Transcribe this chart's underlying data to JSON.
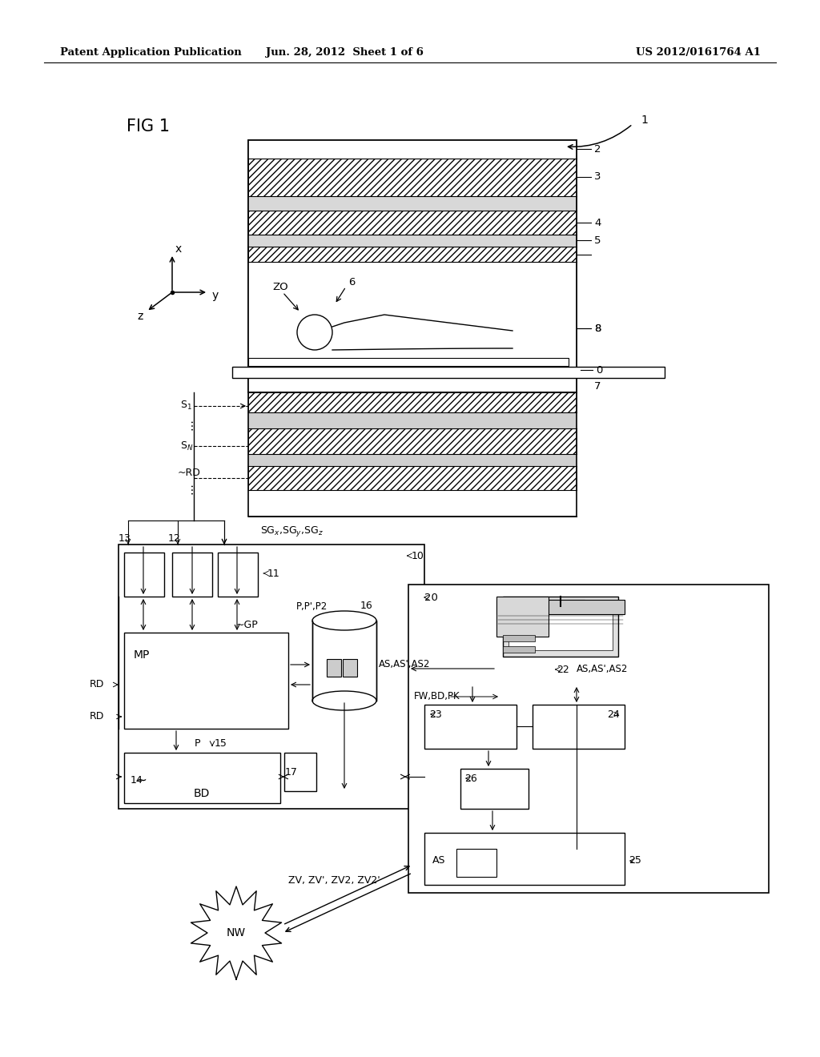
{
  "header_left": "Patent Application Publication",
  "header_center": "Jun. 28, 2012  Sheet 1 of 6",
  "header_right": "US 2012/0161764 A1",
  "fig_label": "FIG 1",
  "bg_color": "#ffffff",
  "line_color": "#000000"
}
